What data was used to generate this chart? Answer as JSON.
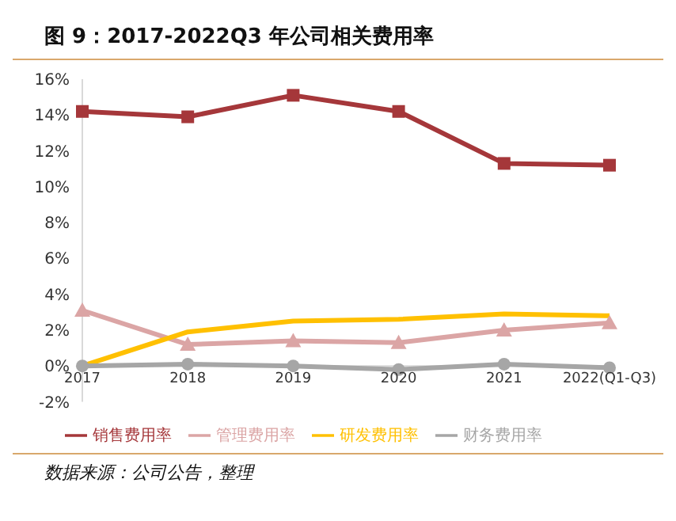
{
  "chart_data": {
    "type": "line",
    "title": "图 9：2017-2022Q3 年公司相关费用率",
    "categories": [
      "2017",
      "2018",
      "2019",
      "2020",
      "2021",
      "2022(Q1-Q3)"
    ],
    "series": [
      {
        "name": "销售费用率",
        "color": "#a5373a",
        "marker": "square",
        "values": [
          14.2,
          13.9,
          15.1,
          14.2,
          11.3,
          11.2
        ]
      },
      {
        "name": "管理费用率",
        "color": "#dba5a5",
        "marker": "triangle",
        "values": [
          3.1,
          1.2,
          1.4,
          1.3,
          2.0,
          2.4
        ]
      },
      {
        "name": "研发费用率",
        "color": "#ffc000",
        "marker": "none",
        "values": [
          0,
          1.9,
          2.5,
          2.6,
          2.9,
          2.8
        ]
      },
      {
        "name": "财务费用率",
        "color": "#a6a6a6",
        "marker": "circle",
        "values": [
          0.0,
          0.1,
          0.0,
          -0.2,
          0.1,
          -0.1
        ]
      }
    ],
    "ylim": [
      -2,
      16
    ],
    "yticks": [
      {
        "value": -2,
        "label": "-2%"
      },
      {
        "value": 0,
        "label": "0%"
      },
      {
        "value": 2,
        "label": "2%"
      },
      {
        "value": 4,
        "label": "4%"
      },
      {
        "value": 6,
        "label": "6%"
      },
      {
        "value": 8,
        "label": "8%"
      },
      {
        "value": 10,
        "label": "10%"
      },
      {
        "value": 12,
        "label": "12%"
      },
      {
        "value": 14,
        "label": "14%"
      },
      {
        "value": 16,
        "label": "16%"
      }
    ],
    "grid": false,
    "legend": "bottom",
    "annotations": [
      "数据来源：公司公告，整理"
    ]
  }
}
